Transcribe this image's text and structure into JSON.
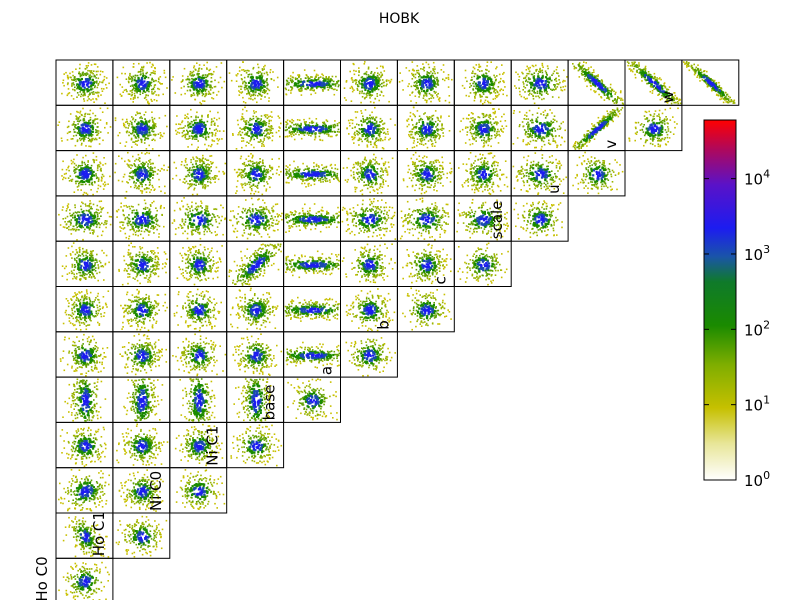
{
  "chart_data": {
    "type": "heatmap",
    "title": "HOBK",
    "layout": "lower-triangular corner plot (pairwise 2D histograms)",
    "variables": [
      "Ho C0",
      "Ho C1",
      "Ni C0",
      "Ni C1",
      "base",
      "a",
      "b",
      "c",
      "scale",
      "u",
      "v",
      "w"
    ],
    "colorbar": {
      "scale": "log",
      "range": [
        1,
        60000
      ],
      "ticks": [
        {
          "base": "10",
          "exp": "0"
        },
        {
          "base": "10",
          "exp": "1"
        },
        {
          "base": "10",
          "exp": "2"
        },
        {
          "base": "10",
          "exp": "3"
        },
        {
          "base": "10",
          "exp": "4"
        }
      ],
      "tick_values": [
        1,
        10,
        100,
        1000,
        10000
      ],
      "colors": [
        "#ffffff",
        "#c8c000",
        "#1a8a00",
        "#1c1cf0",
        "#ff0000"
      ]
    },
    "grid": false,
    "legend": "colorbar at right"
  }
}
